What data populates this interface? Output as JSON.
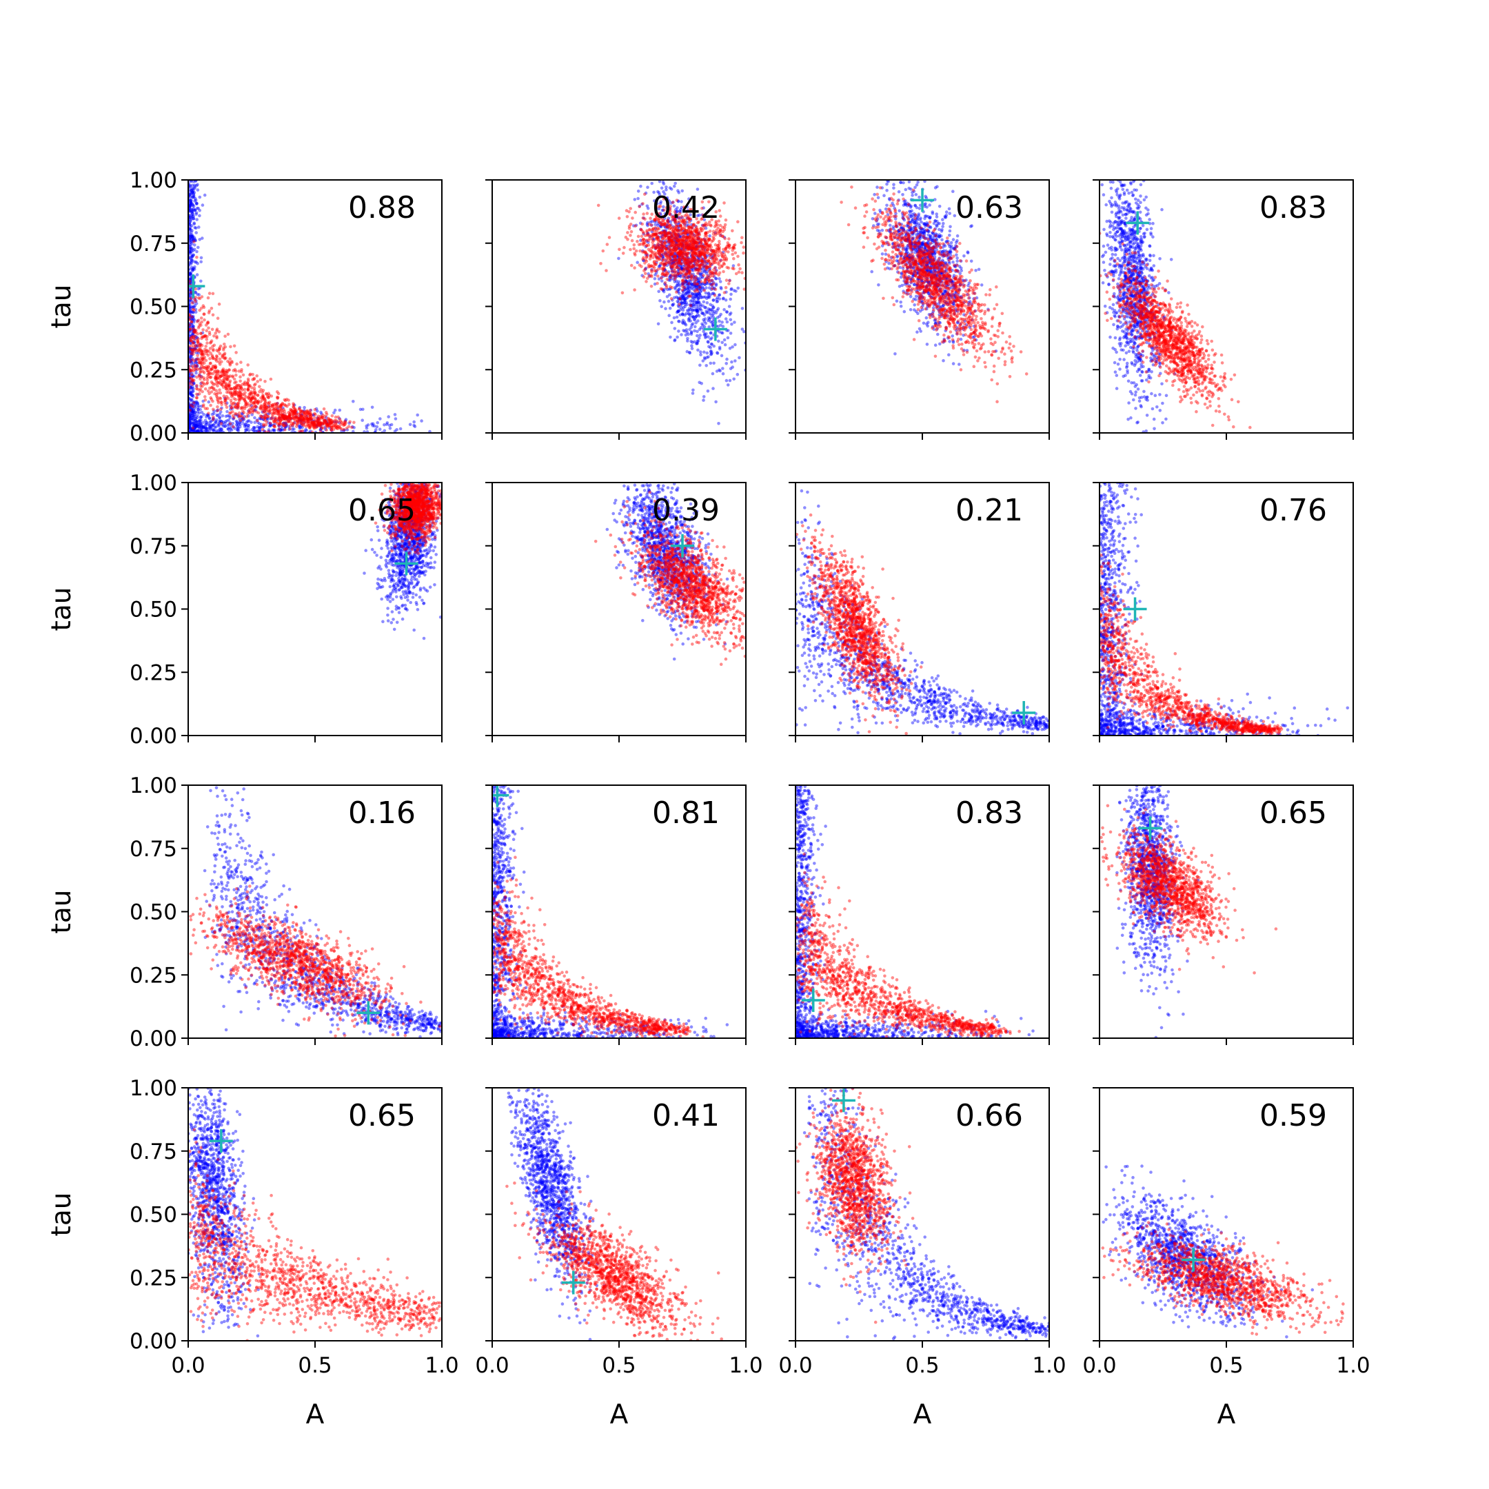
{
  "figure": {
    "grid_rows": 4,
    "grid_cols": 4,
    "x_axis_label": "A",
    "y_axis_label": "tau",
    "x_ticks": [
      "0.0",
      "0.5",
      "1.0"
    ],
    "y_ticks": [
      "0.00",
      "0.25",
      "0.50",
      "0.75",
      "1.00"
    ],
    "colors": {
      "series_a": "#0000ff",
      "series_b": "#ff0000",
      "marker": "#1fb5b5",
      "axes": "#000000"
    }
  },
  "chart_data": [
    {
      "type": "scatter",
      "annotation": "0.88",
      "xlim": [
        0,
        1
      ],
      "ylim": [
        0,
        1
      ],
      "grid": false,
      "marker": [
        0.02,
        0.58
      ],
      "series": [
        {
          "color": "#0000ff",
          "cluster": {
            "shape": "L",
            "hx": 0.02,
            "hy": 0.05
          }
        },
        {
          "color": "#ff0000",
          "cluster": {
            "shape": "decay",
            "x0": 0.0,
            "x1": 0.6,
            "y0": 0.38,
            "y1": 0.03
          }
        }
      ]
    },
    {
      "type": "scatter",
      "annotation": "0.42",
      "xlim": [
        0,
        1
      ],
      "ylim": [
        0,
        1
      ],
      "grid": false,
      "marker": [
        0.88,
        0.41
      ],
      "series": [
        {
          "color": "#0000ff",
          "cluster": {
            "shape": "blob",
            "cx": 0.77,
            "cy": 0.62,
            "sx": 0.08,
            "sy": 0.17,
            "r": -0.6
          }
        },
        {
          "color": "#ff0000",
          "cluster": {
            "shape": "blob",
            "cx": 0.75,
            "cy": 0.73,
            "sx": 0.1,
            "sy": 0.07,
            "r": -0.1
          }
        }
      ]
    },
    {
      "type": "scatter",
      "annotation": "0.63",
      "xlim": [
        0,
        1
      ],
      "ylim": [
        0,
        1
      ],
      "grid": false,
      "marker": [
        0.5,
        0.92
      ],
      "series": [
        {
          "color": "#0000ff",
          "cluster": {
            "shape": "blob",
            "cx": 0.52,
            "cy": 0.68,
            "sx": 0.08,
            "sy": 0.14,
            "r": -0.5
          }
        },
        {
          "color": "#ff0000",
          "cluster": {
            "shape": "blob",
            "cx": 0.55,
            "cy": 0.6,
            "sx": 0.12,
            "sy": 0.14,
            "r": -0.8
          }
        }
      ]
    },
    {
      "type": "scatter",
      "annotation": "0.83",
      "xlim": [
        0,
        1
      ],
      "ylim": [
        0,
        1
      ],
      "grid": false,
      "marker": [
        0.15,
        0.83
      ],
      "series": [
        {
          "color": "#0000ff",
          "cluster": {
            "shape": "blob",
            "cx": 0.13,
            "cy": 0.6,
            "sx": 0.05,
            "sy": 0.22,
            "r": -0.4
          }
        },
        {
          "color": "#ff0000",
          "cluster": {
            "shape": "blob",
            "cx": 0.27,
            "cy": 0.38,
            "sx": 0.1,
            "sy": 0.12,
            "r": -0.8
          }
        }
      ]
    },
    {
      "type": "scatter",
      "annotation": "0.65",
      "xlim": [
        0,
        1
      ],
      "ylim": [
        0,
        1
      ],
      "grid": false,
      "marker": [
        0.86,
        0.68
      ],
      "series": [
        {
          "color": "#0000ff",
          "cluster": {
            "shape": "blob",
            "cx": 0.87,
            "cy": 0.78,
            "sx": 0.05,
            "sy": 0.13,
            "r": 0.2
          }
        },
        {
          "color": "#ff0000",
          "cluster": {
            "shape": "blob",
            "cx": 0.9,
            "cy": 0.9,
            "sx": 0.05,
            "sy": 0.06,
            "r": 0.1
          }
        }
      ]
    },
    {
      "type": "scatter",
      "annotation": "0.39",
      "xlim": [
        0,
        1
      ],
      "ylim": [
        0,
        1
      ],
      "grid": false,
      "marker": [
        0.75,
        0.75
      ],
      "series": [
        {
          "color": "#0000ff",
          "cluster": {
            "shape": "blob",
            "cx": 0.68,
            "cy": 0.74,
            "sx": 0.08,
            "sy": 0.13,
            "r": -0.5
          }
        },
        {
          "color": "#ff0000",
          "cluster": {
            "shape": "blob",
            "cx": 0.78,
            "cy": 0.6,
            "sx": 0.1,
            "sy": 0.1,
            "r": -0.6
          }
        }
      ]
    },
    {
      "type": "scatter",
      "annotation": "0.21",
      "xlim": [
        0,
        1
      ],
      "ylim": [
        0,
        1
      ],
      "grid": false,
      "marker": [
        0.9,
        0.09
      ],
      "series": [
        {
          "color": "#0000ff",
          "cluster": {
            "shape": "decay",
            "x0": 0.02,
            "x1": 1.0,
            "y0": 0.55,
            "y1": 0.04
          }
        },
        {
          "color": "#ff0000",
          "cluster": {
            "shape": "blob",
            "cx": 0.24,
            "cy": 0.43,
            "sx": 0.08,
            "sy": 0.15,
            "r": -0.7
          }
        }
      ]
    },
    {
      "type": "scatter",
      "annotation": "0.76",
      "xlim": [
        0,
        1
      ],
      "ylim": [
        0,
        1
      ],
      "grid": false,
      "marker": [
        0.14,
        0.5
      ],
      "series": [
        {
          "color": "#0000ff",
          "cluster": {
            "shape": "L",
            "hx": 0.06,
            "hy": 0.05
          }
        },
        {
          "color": "#ff0000",
          "cluster": {
            "shape": "decay",
            "x0": 0.0,
            "x1": 0.7,
            "y0": 0.42,
            "y1": 0.02
          }
        }
      ]
    },
    {
      "type": "scatter",
      "annotation": "0.16",
      "xlim": [
        0,
        1
      ],
      "ylim": [
        0,
        1
      ],
      "grid": false,
      "marker": [
        0.71,
        0.1
      ],
      "series": [
        {
          "color": "#0000ff",
          "cluster": {
            "shape": "decay",
            "x0": 0.12,
            "x1": 1.0,
            "y0": 0.7,
            "y1": 0.05
          }
        },
        {
          "color": "#ff0000",
          "cluster": {
            "shape": "blob",
            "cx": 0.43,
            "cy": 0.3,
            "sx": 0.18,
            "sy": 0.1,
            "r": -0.7
          }
        }
      ]
    },
    {
      "type": "scatter",
      "annotation": "0.81",
      "xlim": [
        0,
        1
      ],
      "ylim": [
        0,
        1
      ],
      "grid": false,
      "marker": [
        0.02,
        0.96
      ],
      "series": [
        {
          "color": "#0000ff",
          "cluster": {
            "shape": "L",
            "hx": 0.04,
            "hy": 0.04
          }
        },
        {
          "color": "#ff0000",
          "cluster": {
            "shape": "decay",
            "x0": 0.02,
            "x1": 0.75,
            "y0": 0.4,
            "y1": 0.03
          }
        }
      ]
    },
    {
      "type": "scatter",
      "annotation": "0.83",
      "xlim": [
        0,
        1
      ],
      "ylim": [
        0,
        1
      ],
      "grid": false,
      "marker": [
        0.07,
        0.15
      ],
      "series": [
        {
          "color": "#0000ff",
          "cluster": {
            "shape": "L",
            "hx": 0.04,
            "hy": 0.04
          }
        },
        {
          "color": "#ff0000",
          "cluster": {
            "shape": "decay",
            "x0": 0.03,
            "x1": 0.8,
            "y0": 0.4,
            "y1": 0.03
          }
        }
      ]
    },
    {
      "type": "scatter",
      "annotation": "0.65",
      "xlim": [
        0,
        1
      ],
      "ylim": [
        0,
        1
      ],
      "grid": false,
      "marker": [
        0.2,
        0.83
      ],
      "series": [
        {
          "color": "#0000ff",
          "cluster": {
            "shape": "blob",
            "cx": 0.2,
            "cy": 0.68,
            "sx": 0.05,
            "sy": 0.2,
            "r": -0.2
          }
        },
        {
          "color": "#ff0000",
          "cluster": {
            "shape": "blob",
            "cx": 0.28,
            "cy": 0.6,
            "sx": 0.1,
            "sy": 0.1,
            "r": -0.6
          }
        }
      ]
    },
    {
      "type": "scatter",
      "annotation": "0.65",
      "xlim": [
        0,
        1
      ],
      "ylim": [
        0,
        1
      ],
      "grid": false,
      "marker": [
        0.13,
        0.79
      ],
      "series": [
        {
          "color": "#0000ff",
          "cluster": {
            "shape": "blob",
            "cx": 0.1,
            "cy": 0.6,
            "sx": 0.06,
            "sy": 0.24,
            "r": -0.4
          }
        },
        {
          "color": "#ff0000",
          "cluster": {
            "shape": "decay",
            "x0": 0.02,
            "x1": 0.98,
            "y0": 0.42,
            "y1": 0.1
          }
        }
      ]
    },
    {
      "type": "scatter",
      "annotation": "0.41",
      "xlim": [
        0,
        1
      ],
      "ylim": [
        0,
        1
      ],
      "grid": false,
      "marker": [
        0.32,
        0.23
      ],
      "series": [
        {
          "color": "#0000ff",
          "cluster": {
            "shape": "blob",
            "cx": 0.23,
            "cy": 0.62,
            "sx": 0.07,
            "sy": 0.2,
            "r": -0.7
          }
        },
        {
          "color": "#ff0000",
          "cluster": {
            "shape": "blob",
            "cx": 0.48,
            "cy": 0.26,
            "sx": 0.13,
            "sy": 0.11,
            "r": -0.7
          }
        }
      ]
    },
    {
      "type": "scatter",
      "annotation": "0.66",
      "xlim": [
        0,
        1
      ],
      "ylim": [
        0,
        1
      ],
      "grid": false,
      "marker": [
        0.19,
        0.95
      ],
      "series": [
        {
          "color": "#0000ff",
          "cluster": {
            "shape": "decay",
            "x0": 0.08,
            "x1": 1.0,
            "y0": 0.9,
            "y1": 0.04
          }
        },
        {
          "color": "#ff0000",
          "cluster": {
            "shape": "blob",
            "cx": 0.23,
            "cy": 0.63,
            "sx": 0.07,
            "sy": 0.13,
            "r": -0.3
          }
        }
      ]
    },
    {
      "type": "scatter",
      "annotation": "0.59",
      "xlim": [
        0,
        1
      ],
      "ylim": [
        0,
        1
      ],
      "grid": false,
      "marker": [
        0.37,
        0.32
      ],
      "series": [
        {
          "color": "#0000ff",
          "cluster": {
            "shape": "blob",
            "cx": 0.33,
            "cy": 0.33,
            "sx": 0.13,
            "sy": 0.12,
            "r": -0.6
          }
        },
        {
          "color": "#ff0000",
          "cluster": {
            "shape": "blob",
            "cx": 0.48,
            "cy": 0.24,
            "sx": 0.18,
            "sy": 0.08,
            "r": -0.6
          }
        }
      ]
    }
  ]
}
